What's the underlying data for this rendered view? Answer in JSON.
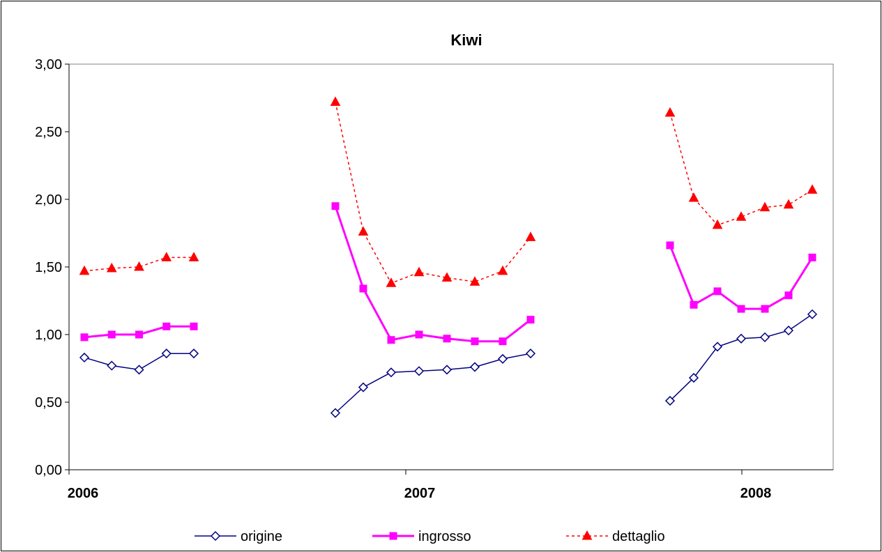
{
  "chart_data": {
    "type": "line",
    "title": "Kiwi",
    "xlabel": "",
    "ylabel": "",
    "ylim": [
      0,
      3
    ],
    "y_ticks": [
      "0,00",
      "0,50",
      "1,00",
      "1,50",
      "2,00",
      "2,50",
      "3,00"
    ],
    "x_tick_labels": [
      "2006",
      "2007",
      "2008"
    ],
    "grid": false,
    "legend_position": "bottom",
    "series": [
      {
        "name": "origine",
        "color": "#000080",
        "marker": "diamond-open",
        "line_style": "solid",
        "segments": [
          [
            0.83,
            0.77,
            0.74,
            0.86,
            0.86
          ],
          [
            0.42,
            0.61,
            0.72,
            0.73,
            0.74,
            0.76,
            0.82,
            0.86
          ],
          [
            0.51,
            0.68,
            0.91,
            0.97,
            0.98,
            1.03,
            1.15
          ]
        ]
      },
      {
        "name": "ingrosso",
        "color": "#FF00FF",
        "marker": "square",
        "line_style": "solid",
        "segments": [
          [
            0.98,
            1.0,
            1.0,
            1.06,
            1.06
          ],
          [
            1.95,
            1.34,
            0.96,
            1.0,
            0.97,
            0.95,
            0.95,
            1.11
          ],
          [
            1.66,
            1.22,
            1.32,
            1.19,
            1.19,
            1.29,
            1.57
          ]
        ]
      },
      {
        "name": "dettaglio",
        "color": "#FF0000",
        "marker": "triangle",
        "line_style": "dotted",
        "segments": [
          [
            1.47,
            1.49,
            1.5,
            1.57,
            1.57
          ],
          [
            2.72,
            1.76,
            1.38,
            1.46,
            1.42,
            1.39,
            1.47,
            1.72
          ],
          [
            2.64,
            2.01,
            1.81,
            1.87,
            1.94,
            1.96,
            2.07
          ]
        ]
      }
    ]
  }
}
